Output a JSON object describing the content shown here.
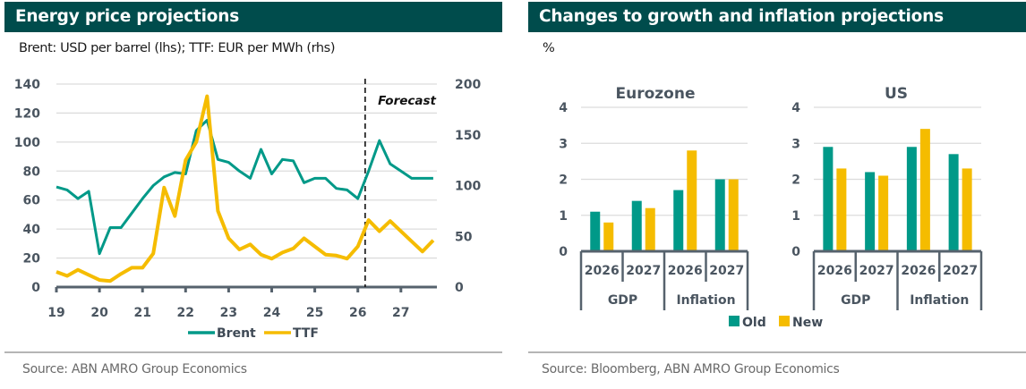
{
  "colors": {
    "header_bg": "#004C4C",
    "brent": "#009988",
    "ttf": "#F5BC00",
    "old": "#009988",
    "new": "#F5BC00",
    "axis": "#56626D"
  },
  "left_panel": {
    "title": "Energy price projections",
    "subtitle": "Brent: USD per barrel (lhs); TTF: EUR per MWh (rhs)",
    "source": "Source: ABN AMRO Group Economics",
    "forecast_label": "Forecast"
  },
  "right_panel": {
    "title": "Changes to growth and inflation projections",
    "subtitle": "%",
    "source": "Source: Bloomberg, ABN AMRO Group Economics"
  },
  "chart_data": [
    {
      "type": "line",
      "title": "Energy price projections",
      "subtitle": "Brent: USD per barrel (lhs); TTF: EUR per MWh (rhs)",
      "xlabel": "",
      "x_ticks": [
        "19",
        "20",
        "21",
        "22",
        "23",
        "24",
        "25",
        "26",
        "27"
      ],
      "x_range": [
        19,
        27.9
      ],
      "y_left": {
        "label": "USD per barrel",
        "range": [
          0,
          140
        ],
        "ticks": [
          0,
          20,
          40,
          60,
          80,
          100,
          120,
          140
        ]
      },
      "y_right": {
        "label": "EUR per MWh",
        "range": [
          0,
          200
        ],
        "ticks": [
          0,
          50,
          100,
          150,
          200
        ]
      },
      "grid": true,
      "legend": {
        "position": "bottom",
        "entries": [
          "Brent",
          "TTF"
        ]
      },
      "forecast_start": 26.17,
      "annotation": "Forecast",
      "series": [
        {
          "name": "Brent",
          "axis": "left",
          "x": [
            19.0,
            19.25,
            19.5,
            19.75,
            20.0,
            20.25,
            20.5,
            20.75,
            21.0,
            21.25,
            21.5,
            21.75,
            22.0,
            22.25,
            22.5,
            22.75,
            23.0,
            23.25,
            23.5,
            23.75,
            24.0,
            24.25,
            24.5,
            24.75,
            25.0,
            25.25,
            25.5,
            25.75,
            26.0,
            26.25,
            26.5,
            26.75,
            27.0,
            27.25,
            27.5,
            27.75
          ],
          "values": [
            69,
            67,
            61,
            66,
            23,
            41,
            41,
            51,
            61,
            70,
            76,
            79,
            78,
            108,
            115,
            88,
            86,
            80,
            75,
            95,
            78,
            88,
            87,
            72,
            75,
            75,
            68,
            67,
            61,
            80,
            101,
            85,
            80,
            75,
            75,
            75
          ]
        },
        {
          "name": "TTF",
          "axis": "right",
          "x": [
            19.0,
            19.25,
            19.5,
            19.75,
            20.0,
            20.25,
            20.5,
            20.75,
            21.0,
            21.25,
            21.5,
            21.75,
            22.0,
            22.25,
            22.5,
            22.75,
            23.0,
            23.25,
            23.5,
            23.75,
            24.0,
            24.25,
            24.5,
            24.75,
            25.0,
            25.25,
            25.5,
            25.75,
            26.0,
            26.25,
            26.5,
            26.75,
            27.0,
            27.25,
            27.5,
            27.75
          ],
          "values": [
            15,
            11,
            17,
            12,
            7,
            6,
            13,
            19,
            19,
            33,
            98,
            70,
            125,
            143,
            188,
            75,
            48,
            37,
            42,
            32,
            28,
            34,
            38,
            48,
            40,
            32,
            31,
            28,
            40,
            66,
            55,
            65,
            55,
            45,
            35,
            46
          ]
        }
      ]
    },
    {
      "type": "bar",
      "title": "Eurozone",
      "ylabel": "%",
      "ylim": [
        0,
        4
      ],
      "y_ticks": [
        0,
        1,
        2,
        3,
        4
      ],
      "grid": true,
      "categories": [
        "2026",
        "2027",
        "2026",
        "2027"
      ],
      "groups": [
        {
          "label": "GDP",
          "span": 2
        },
        {
          "label": "Inflation",
          "span": 2
        }
      ],
      "series": [
        {
          "name": "Old",
          "values": [
            1.1,
            1.4,
            1.7,
            2.0
          ]
        },
        {
          "name": "New",
          "values": [
            0.8,
            1.2,
            2.8,
            2.0
          ]
        }
      ]
    },
    {
      "type": "bar",
      "title": "US",
      "ylabel": "%",
      "ylim": [
        0,
        4
      ],
      "y_ticks": [
        0,
        1,
        2,
        3,
        4
      ],
      "grid": true,
      "categories": [
        "2026",
        "2027",
        "2026",
        "2027"
      ],
      "groups": [
        {
          "label": "GDP",
          "span": 2
        },
        {
          "label": "Inflation",
          "span": 2
        }
      ],
      "series": [
        {
          "name": "Old",
          "values": [
            2.9,
            2.2,
            2.9,
            2.7
          ]
        },
        {
          "name": "New",
          "values": [
            2.3,
            2.1,
            3.4,
            2.3
          ]
        }
      ]
    }
  ],
  "bar_legend": {
    "position": "bottom",
    "entries": [
      "Old",
      "New"
    ]
  }
}
